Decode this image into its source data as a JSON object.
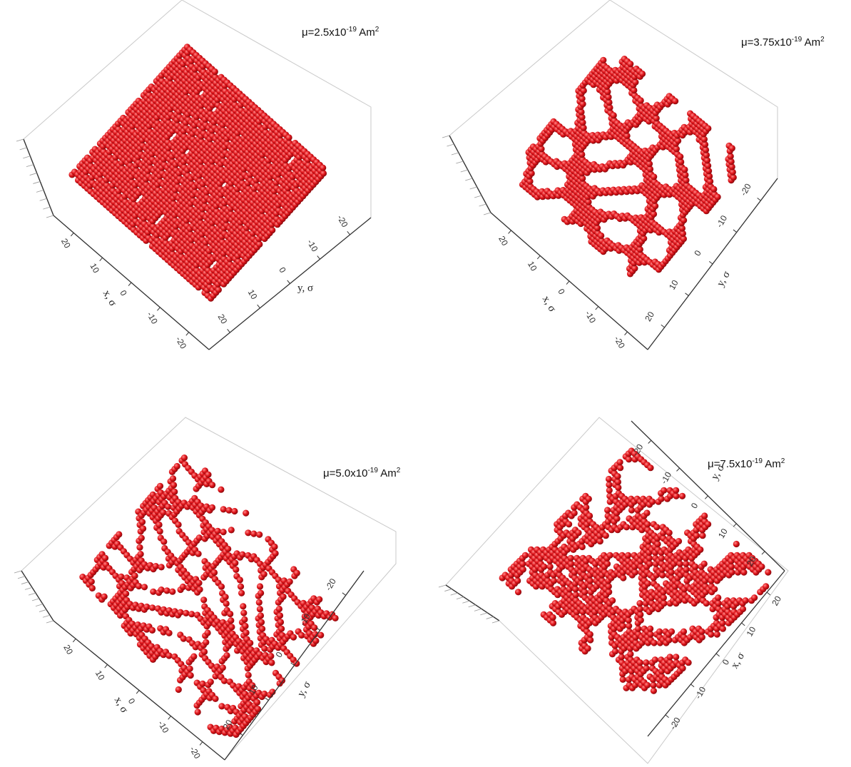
{
  "colors": {
    "particle": "#e0141a",
    "particle_highlight": "#ff8a8a",
    "frame": "#c9c9c9",
    "axis": "#333333"
  },
  "chart_data": [
    {
      "type": "scatter",
      "subtype": "3d-particle-configuration",
      "pattern": "parallel-stripes",
      "title": {
        "prefix": "μ=2.5x10",
        "exp": "-19",
        "unit": " Am",
        "unit_exp": "2"
      },
      "axes": {
        "a": {
          "label": "x, σ",
          "ticks": [
            "20",
            "10",
            "0",
            "-10",
            "-20"
          ]
        },
        "b": {
          "label": "y, σ",
          "ticks": [
            "20",
            "10",
            "0",
            "-10",
            "-20"
          ]
        }
      }
    },
    {
      "type": "scatter",
      "subtype": "3d-particle-configuration",
      "pattern": "labyrinth",
      "title": {
        "prefix": "μ=3.75x10",
        "exp": "-19",
        "unit": " Am",
        "unit_exp": "2"
      },
      "axes": {
        "a": {
          "label": "x, σ",
          "ticks": [
            "20",
            "10",
            "0",
            "-10",
            "-20"
          ]
        },
        "b": {
          "label": "y, σ",
          "ticks": [
            "20",
            "10",
            "0",
            "-10",
            "-20"
          ]
        }
      }
    },
    {
      "type": "scatter",
      "subtype": "3d-particle-configuration",
      "pattern": "short-chains",
      "title": {
        "prefix": "μ=5.0x10",
        "exp": "-19",
        "unit": " Am",
        "unit_exp": "2"
      },
      "axes": {
        "a": {
          "label": "x, σ",
          "ticks": [
            "20",
            "10",
            "0",
            "-10",
            "-20"
          ]
        },
        "b": {
          "label": "y, σ",
          "ticks": [
            "20",
            "10",
            "0",
            "-10",
            "-20"
          ]
        }
      }
    },
    {
      "type": "scatter",
      "subtype": "3d-particle-configuration",
      "pattern": "clusters",
      "title": {
        "prefix": "μ=7.5x10",
        "exp": "-19",
        "unit": " Am",
        "unit_exp": "2"
      },
      "axes": {
        "a": {
          "label": "y, σ",
          "ticks": [
            "-20",
            "-10",
            "0",
            "10",
            "20"
          ]
        },
        "b": {
          "label": "x, σ",
          "ticks": [
            "20",
            "10",
            "0",
            "-10",
            "-20"
          ]
        }
      }
    }
  ]
}
